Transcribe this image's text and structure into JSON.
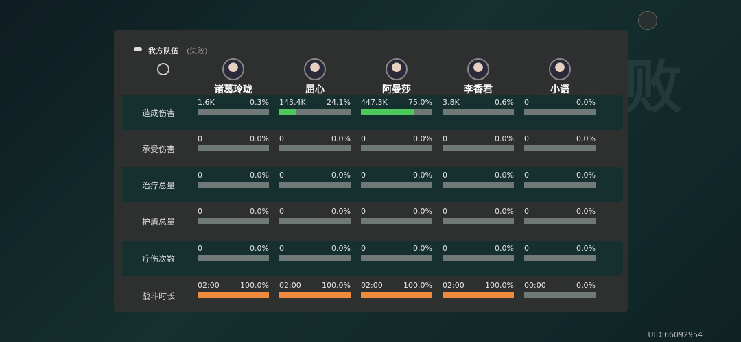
{
  "background_title": "战斗失败",
  "header": {
    "title": "我方队伍",
    "status": "(失败)"
  },
  "members": [
    "诸葛玲珑",
    "屈心",
    "阿曼莎",
    "李香君",
    "小语"
  ],
  "rows": [
    {
      "label": "造成伤害",
      "bar_color": "#4cc95a",
      "highlight": true,
      "cells": [
        {
          "amount": "1.6K",
          "share": 0.3,
          "share_label": "0.3%"
        },
        {
          "amount": "143.4K",
          "share": 24.1,
          "share_label": "24.1%"
        },
        {
          "amount": "447.3K",
          "share": 75.0,
          "share_label": "75.0%"
        },
        {
          "amount": "3.8K",
          "share": 0.6,
          "share_label": "0.6%"
        },
        {
          "amount": "0",
          "share": 0,
          "share_label": "0.0%"
        }
      ]
    },
    {
      "label": "承受伤害",
      "bar_color": "#4cc95a",
      "highlight": false,
      "cells": [
        {
          "amount": "0",
          "share": 0,
          "share_label": "0.0%"
        },
        {
          "amount": "0",
          "share": 0,
          "share_label": "0.0%"
        },
        {
          "amount": "0",
          "share": 0,
          "share_label": "0.0%"
        },
        {
          "amount": "0",
          "share": 0,
          "share_label": "0.0%"
        },
        {
          "amount": "0",
          "share": 0,
          "share_label": "0.0%"
        }
      ]
    },
    {
      "label": "治疗总量",
      "bar_color": "#4cc95a",
      "highlight": true,
      "cells": [
        {
          "amount": "0",
          "share": 0,
          "share_label": "0.0%"
        },
        {
          "amount": "0",
          "share": 0,
          "share_label": "0.0%"
        },
        {
          "amount": "0",
          "share": 0,
          "share_label": "0.0%"
        },
        {
          "amount": "0",
          "share": 0,
          "share_label": "0.0%"
        },
        {
          "amount": "0",
          "share": 0,
          "share_label": "0.0%"
        }
      ]
    },
    {
      "label": "护盾总量",
      "bar_color": "#4cc95a",
      "highlight": false,
      "cells": [
        {
          "amount": "0",
          "share": 0,
          "share_label": "0.0%"
        },
        {
          "amount": "0",
          "share": 0,
          "share_label": "0.0%"
        },
        {
          "amount": "0",
          "share": 0,
          "share_label": "0.0%"
        },
        {
          "amount": "0",
          "share": 0,
          "share_label": "0.0%"
        },
        {
          "amount": "0",
          "share": 0,
          "share_label": "0.0%"
        }
      ]
    },
    {
      "label": "疗伤次数",
      "bar_color": "#4cc95a",
      "highlight": true,
      "cells": [
        {
          "amount": "0",
          "share": 0,
          "share_label": "0.0%"
        },
        {
          "amount": "0",
          "share": 0,
          "share_label": "0.0%"
        },
        {
          "amount": "0",
          "share": 0,
          "share_label": "0.0%"
        },
        {
          "amount": "0",
          "share": 0,
          "share_label": "0.0%"
        },
        {
          "amount": "0",
          "share": 0,
          "share_label": "0.0%"
        }
      ]
    },
    {
      "label": "战斗时长",
      "bar_color": "#ef8a3c",
      "highlight": false,
      "cells": [
        {
          "amount": "02:00",
          "share": 100.0,
          "share_label": "100.0%"
        },
        {
          "amount": "02:00",
          "share": 100.0,
          "share_label": "100.0%"
        },
        {
          "amount": "02:00",
          "share": 100.0,
          "share_label": "100.0%"
        },
        {
          "amount": "02:00",
          "share": 100.0,
          "share_label": "100.0%"
        },
        {
          "amount": "00:00",
          "share": 0,
          "share_label": "0.0%"
        }
      ]
    }
  ],
  "uid": "UID:66092954"
}
